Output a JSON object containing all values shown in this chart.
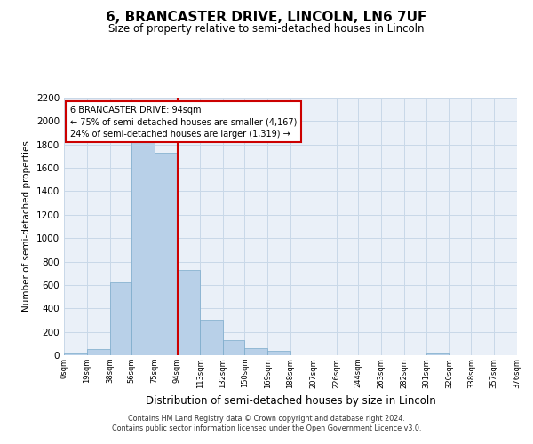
{
  "title": "6, BRANCASTER DRIVE, LINCOLN, LN6 7UF",
  "subtitle": "Size of property relative to semi-detached houses in Lincoln",
  "xlabel": "Distribution of semi-detached houses by size in Lincoln",
  "ylabel": "Number of semi-detached properties",
  "footnote1": "Contains HM Land Registry data © Crown copyright and database right 2024.",
  "footnote2": "Contains public sector information licensed under the Open Government Licence v3.0.",
  "annotation_line1": "6 BRANCASTER DRIVE: 94sqm",
  "annotation_line2": "← 75% of semi-detached houses are smaller (4,167)",
  "annotation_line3": "24% of semi-detached houses are larger (1,319) →",
  "property_size": 94,
  "bar_left_edges": [
    0,
    19,
    38,
    56,
    75,
    94,
    113,
    132,
    150,
    169,
    188,
    207,
    226,
    244,
    263,
    282,
    301,
    320,
    338,
    357
  ],
  "bar_heights": [
    15,
    50,
    620,
    1840,
    1730,
    730,
    300,
    130,
    60,
    40,
    0,
    0,
    0,
    0,
    0,
    0,
    15,
    0,
    0,
    0
  ],
  "bar_widths": [
    19,
    19,
    18,
    19,
    19,
    19,
    19,
    18,
    19,
    19,
    19,
    19,
    18,
    19,
    19,
    19,
    19,
    18,
    19,
    19
  ],
  "tick_labels": [
    "0sqm",
    "19sqm",
    "38sqm",
    "56sqm",
    "75sqm",
    "94sqm",
    "113sqm",
    "132sqm",
    "150sqm",
    "169sqm",
    "188sqm",
    "207sqm",
    "226sqm",
    "244sqm",
    "263sqm",
    "282sqm",
    "301sqm",
    "320sqm",
    "338sqm",
    "357sqm",
    "376sqm"
  ],
  "tick_positions": [
    0,
    19,
    38,
    56,
    75,
    94,
    113,
    132,
    150,
    169,
    188,
    207,
    226,
    244,
    263,
    282,
    301,
    320,
    338,
    357,
    376
  ],
  "ylim": [
    0,
    2200
  ],
  "yticks": [
    0,
    200,
    400,
    600,
    800,
    1000,
    1200,
    1400,
    1600,
    1800,
    2000,
    2200
  ],
  "bar_color": "#b8d0e8",
  "bar_edge_color": "#7aaaca",
  "property_line_color": "#cc0000",
  "annotation_box_edge_color": "#cc0000",
  "grid_color": "#c8d8e8",
  "background_color": "#eaf0f8",
  "fig_background": "#ffffff"
}
